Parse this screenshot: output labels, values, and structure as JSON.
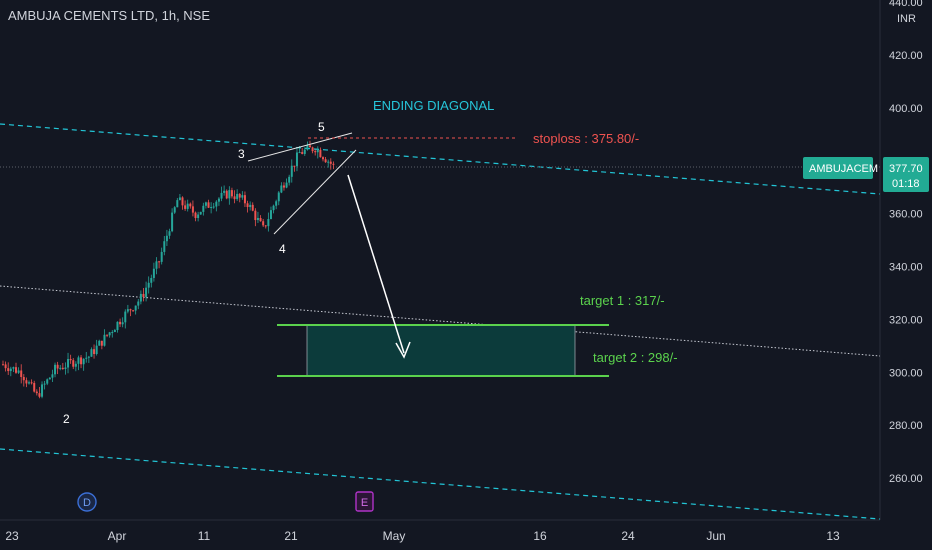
{
  "header": {
    "title": "AMBUJA CEMENTS LTD, 1h, NSE"
  },
  "currency_label": "INR",
  "symbol_badge": {
    "name": "AMBUJACEM",
    "price": "377.70",
    "timer": "01:18"
  },
  "annotations": {
    "pattern": "ENDING DIAGONAL",
    "stoploss": "stoploss : 375.80/-",
    "target1": "target 1 : 317/-",
    "target2": "target 2 : 298/-",
    "wave2": "2",
    "wave3": "3",
    "wave4": "4",
    "wave5": "5"
  },
  "event_badges": {
    "dividend": "D",
    "earnings": "E"
  },
  "colors": {
    "background": "#131722",
    "up": "#26a69a",
    "down": "#ef5350",
    "channel": "#22c5d6",
    "target": "#5bd24d",
    "stoploss": "#ef5350",
    "pattern_text": "#26c6da",
    "badge_bg": "#22ab94"
  },
  "chart_data": {
    "type": "candlestick",
    "title": "AMBUJA CEMENTS LTD, 1h, NSE",
    "y_axis": {
      "ticks": [
        "260.00",
        "280.00",
        "300.00",
        "320.00",
        "340.00",
        "360.00",
        "380.00",
        "400.00",
        "420.00",
        "440.00"
      ]
    },
    "x_axis": {
      "ticks": [
        "23",
        "Apr",
        "11",
        "21",
        "May",
        "16",
        "24",
        "Jun",
        "13"
      ]
    },
    "last_price": 377.7,
    "levels": {
      "stoploss": 375.8,
      "target1": 317,
      "target2": 298
    },
    "price_path": [
      [
        "2023-03-23",
        303
      ],
      [
        "2023-03-27",
        300
      ],
      [
        "2023-03-29",
        291
      ],
      [
        "2023-03-31",
        301
      ],
      [
        "2023-04-03",
        304
      ],
      [
        "2023-04-05",
        306
      ],
      [
        "2023-04-06",
        314
      ],
      [
        "2023-04-10",
        322
      ],
      [
        "2023-04-11",
        328
      ],
      [
        "2023-04-12",
        342
      ],
      [
        "2023-04-13",
        365
      ],
      [
        "2023-04-14",
        360
      ],
      [
        "2023-04-17",
        364
      ],
      [
        "2023-04-18",
        368
      ],
      [
        "2023-04-19",
        364
      ],
      [
        "2023-04-20",
        354
      ],
      [
        "2023-04-21",
        370
      ],
      [
        "2023-04-24",
        383
      ],
      [
        "2023-04-25",
        385
      ],
      [
        "2023-04-26",
        378
      ]
    ]
  }
}
